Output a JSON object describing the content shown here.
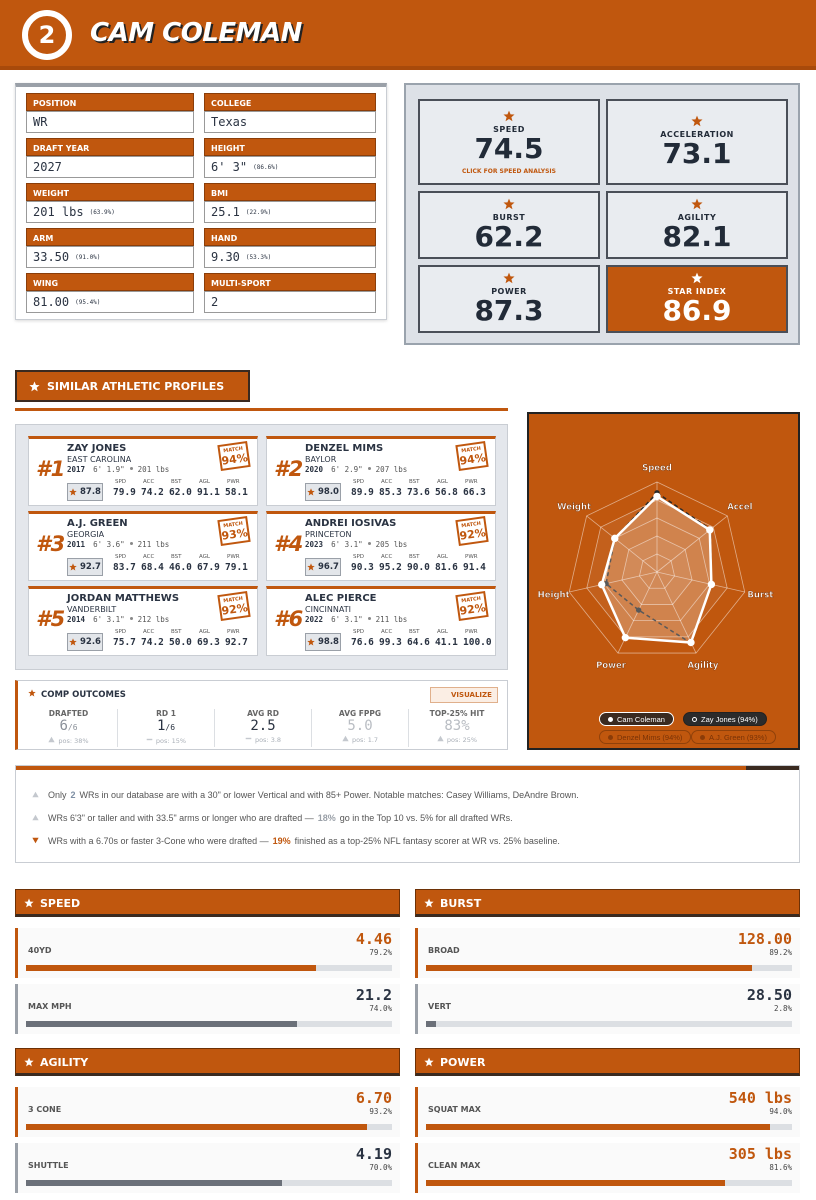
{
  "header": {
    "logo": "2",
    "title": "CAM COLEMAN"
  },
  "profile": {
    "fields": [
      {
        "label": "POSITION",
        "value": "WR"
      },
      {
        "label": "COLLEGE",
        "value": "Texas"
      },
      {
        "label": "DRAFT YEAR",
        "value": "2027"
      },
      {
        "label": "HEIGHT",
        "value": "6' 3\"",
        "pct": "(86.6%)"
      },
      {
        "label": "WEIGHT",
        "value": "201 lbs",
        "pct": "(63.9%)"
      },
      {
        "label": "BMI",
        "value": "25.1",
        "pct": "(22.9%)"
      },
      {
        "label": "ARM",
        "value": "33.50",
        "pct": "(91.0%)"
      },
      {
        "label": "HAND",
        "value": "9.30",
        "pct": "(53.3%)"
      },
      {
        "label": "WING",
        "value": "81.00",
        "pct": "(95.4%)"
      },
      {
        "label": "MULTI-SPORT",
        "value": "2"
      }
    ]
  },
  "scores": [
    {
      "label": "SPEED",
      "value": "74.5",
      "link": "CLICK FOR SPEED ANALYSIS",
      "fill": "#e9ecf0",
      "color": "#222b38"
    },
    {
      "label": "ACCELERATION",
      "value": "73.1",
      "fill": "#e9ecf0",
      "color": "#222b38"
    },
    {
      "label": "BURST",
      "value": "62.2",
      "fill": "#e9ecf0",
      "color": "#222b38"
    },
    {
      "label": "AGILITY",
      "value": "82.1",
      "fill": "#e9ecf0",
      "color": "#222b38"
    },
    {
      "label": "POWER",
      "value": "87.3",
      "fill": "#e9ecf0",
      "color": "#222b38"
    },
    {
      "label": "STAR INDEX",
      "value": "86.9",
      "fill": "#c0570e",
      "color": "#ffffff"
    }
  ],
  "similar": {
    "title": "SIMILAR ATHLETIC PROFILES",
    "match_label": "MATCH",
    "stat_labels": [
      "SPD",
      "ACC",
      "BST",
      "AGL",
      "PWR"
    ],
    "players": [
      {
        "rank": "#1",
        "name": "ZAY JONES",
        "school": "EAST CAROLINA",
        "year": "2017",
        "height": "6' 1.9\"",
        "weight": "201 lbs",
        "star": "87.8",
        "match": "94%",
        "stats": [
          "79.9",
          "74.2",
          "62.0",
          "91.1",
          "58.1"
        ]
      },
      {
        "rank": "#2",
        "name": "DENZEL MIMS",
        "school": "BAYLOR",
        "year": "2020",
        "height": "6' 2.9\"",
        "weight": "207 lbs",
        "star": "98.0",
        "match": "94%",
        "stats": [
          "89.9",
          "85.3",
          "73.6",
          "56.8",
          "66.3"
        ]
      },
      {
        "rank": "#3",
        "name": "A.J. GREEN",
        "school": "GEORGIA",
        "year": "2011",
        "height": "6' 3.6\"",
        "weight": "211 lbs",
        "star": "92.7",
        "match": "93%",
        "stats": [
          "83.7",
          "68.4",
          "46.0",
          "67.9",
          "79.1"
        ]
      },
      {
        "rank": "#4",
        "name": "ANDREI IOSIVAS",
        "school": "PRINCETON",
        "year": "2023",
        "height": "6' 3.1\"",
        "weight": "205 lbs",
        "star": "96.7",
        "match": "92%",
        "stats": [
          "90.3",
          "95.2",
          "90.0",
          "81.6",
          "91.4"
        ]
      },
      {
        "rank": "#5",
        "name": "JORDAN MATTHEWS",
        "school": "VANDERBILT",
        "year": "2014",
        "height": "6' 3.1\"",
        "weight": "212 lbs",
        "star": "92.6",
        "match": "92%",
        "stats": [
          "75.7",
          "74.2",
          "50.0",
          "69.3",
          "92.7"
        ]
      },
      {
        "rank": "#6",
        "name": "ALEC PIERCE",
        "school": "CINCINNATI",
        "year": "2022",
        "height": "6' 3.1\"",
        "weight": "211 lbs",
        "star": "98.8",
        "match": "92%",
        "stats": [
          "76.6",
          "99.3",
          "64.6",
          "41.1",
          "100.0"
        ]
      }
    ]
  },
  "comp": {
    "title": "COMP OUTCOMES",
    "button": "VISUALIZE",
    "columns": [
      {
        "label": "DRAFTED",
        "value": "6",
        "denom": "/6",
        "note": "pos: 38%",
        "trend": "up",
        "color": "#8a9099"
      },
      {
        "label": "RD 1",
        "value": "1",
        "denom": "/6",
        "note": "pos: 15%",
        "trend": "flat",
        "color": "#2a3342"
      },
      {
        "label": "AVG RD",
        "value": "2.5",
        "note": "pos: 3.8",
        "trend": "flat",
        "color": "#2a3342"
      },
      {
        "label": "AVG FPPG",
        "value": "5.0",
        "note": "pos: 1.7",
        "trend": "up",
        "color": "#b9bdc3"
      },
      {
        "label": "TOP-25% HIT",
        "value": "83%",
        "note": "pos: 25%",
        "trend": "up",
        "color": "#b9bdc3"
      }
    ]
  },
  "radar": {
    "type": "radar",
    "axes": [
      "Speed",
      "Accel",
      "Burst",
      "Agility",
      "Power",
      "Height",
      "Weight"
    ],
    "rlim": [
      0,
      100
    ],
    "rticks": [
      20,
      40,
      60,
      80,
      100
    ],
    "series": [
      {
        "name": "Cam Coleman",
        "color": "#ffffff",
        "values": [
          84,
          75,
          62,
          87,
          81,
          63,
          60
        ]
      },
      {
        "name": "Zay Jones (94%)",
        "color": "#2b2b2b",
        "dash": true,
        "values": [
          88,
          76,
          62,
          88,
          47,
          58,
          60
        ]
      }
    ],
    "legend_inactive": [
      "Denzel Mims (94%)",
      "A.J. Green (93%)"
    ]
  },
  "insights": [
    {
      "trend": "up",
      "text": "Only",
      "highlight": "2",
      "after": "WRs in our database are with a 30\" or lower Vertical and with 85+ Power. Notable matches: Casey Williams, DeAndre Brown.",
      "color": "#7d8ea3"
    },
    {
      "trend": "up",
      "text": "WRs 6'3\" or taller and with 33.5\" arms or longer who are drafted —",
      "highlight": "18%",
      "after": "go in the Top 10 vs. 5% for all drafted WRs.",
      "color": "#9aa0a8"
    },
    {
      "trend": "down",
      "text": "WRs with a 6.70s or faster 3-Cone who were drafted —",
      "highlight": "19%",
      "after": "finished as a top-25% NFL fantasy scorer at WR vs. 25% baseline.",
      "color": "#c0570e"
    }
  ],
  "metrics": [
    {
      "title": "SPEED",
      "rows": [
        {
          "label": "40YD",
          "value": "4.46",
          "pct": 79.2,
          "pct_label": "79.2%",
          "color": "#c0570e"
        },
        {
          "label": "MAX MPH",
          "value": "21.2",
          "pct": 74.0,
          "pct_label": "74.0%",
          "color": "#2a3342"
        }
      ]
    },
    {
      "title": "BURST",
      "rows": [
        {
          "label": "BROAD",
          "value": "128.00",
          "pct": 89.2,
          "pct_label": "89.2%",
          "color": "#c0570e"
        },
        {
          "label": "VERT",
          "value": "28.50",
          "pct": 2.8,
          "pct_label": "2.8%",
          "color": "#2a3342"
        }
      ]
    },
    {
      "title": "AGILITY",
      "rows": [
        {
          "label": "3 CONE",
          "value": "6.70",
          "pct": 93.2,
          "pct_label": "93.2%",
          "color": "#c0570e"
        },
        {
          "label": "SHUTTLE",
          "value": "4.19",
          "pct": 70.0,
          "pct_label": "70.0%",
          "color": "#2a3342"
        }
      ]
    },
    {
      "title": "POWER",
      "rows": [
        {
          "label": "SQUAT MAX",
          "value": "540 lbs",
          "pct": 94.0,
          "pct_label": "94.0%",
          "color": "#c0570e"
        },
        {
          "label": "CLEAN MAX",
          "value": "305 lbs",
          "pct": 81.6,
          "pct_label": "81.6%",
          "color": "#c0570e"
        }
      ]
    }
  ]
}
